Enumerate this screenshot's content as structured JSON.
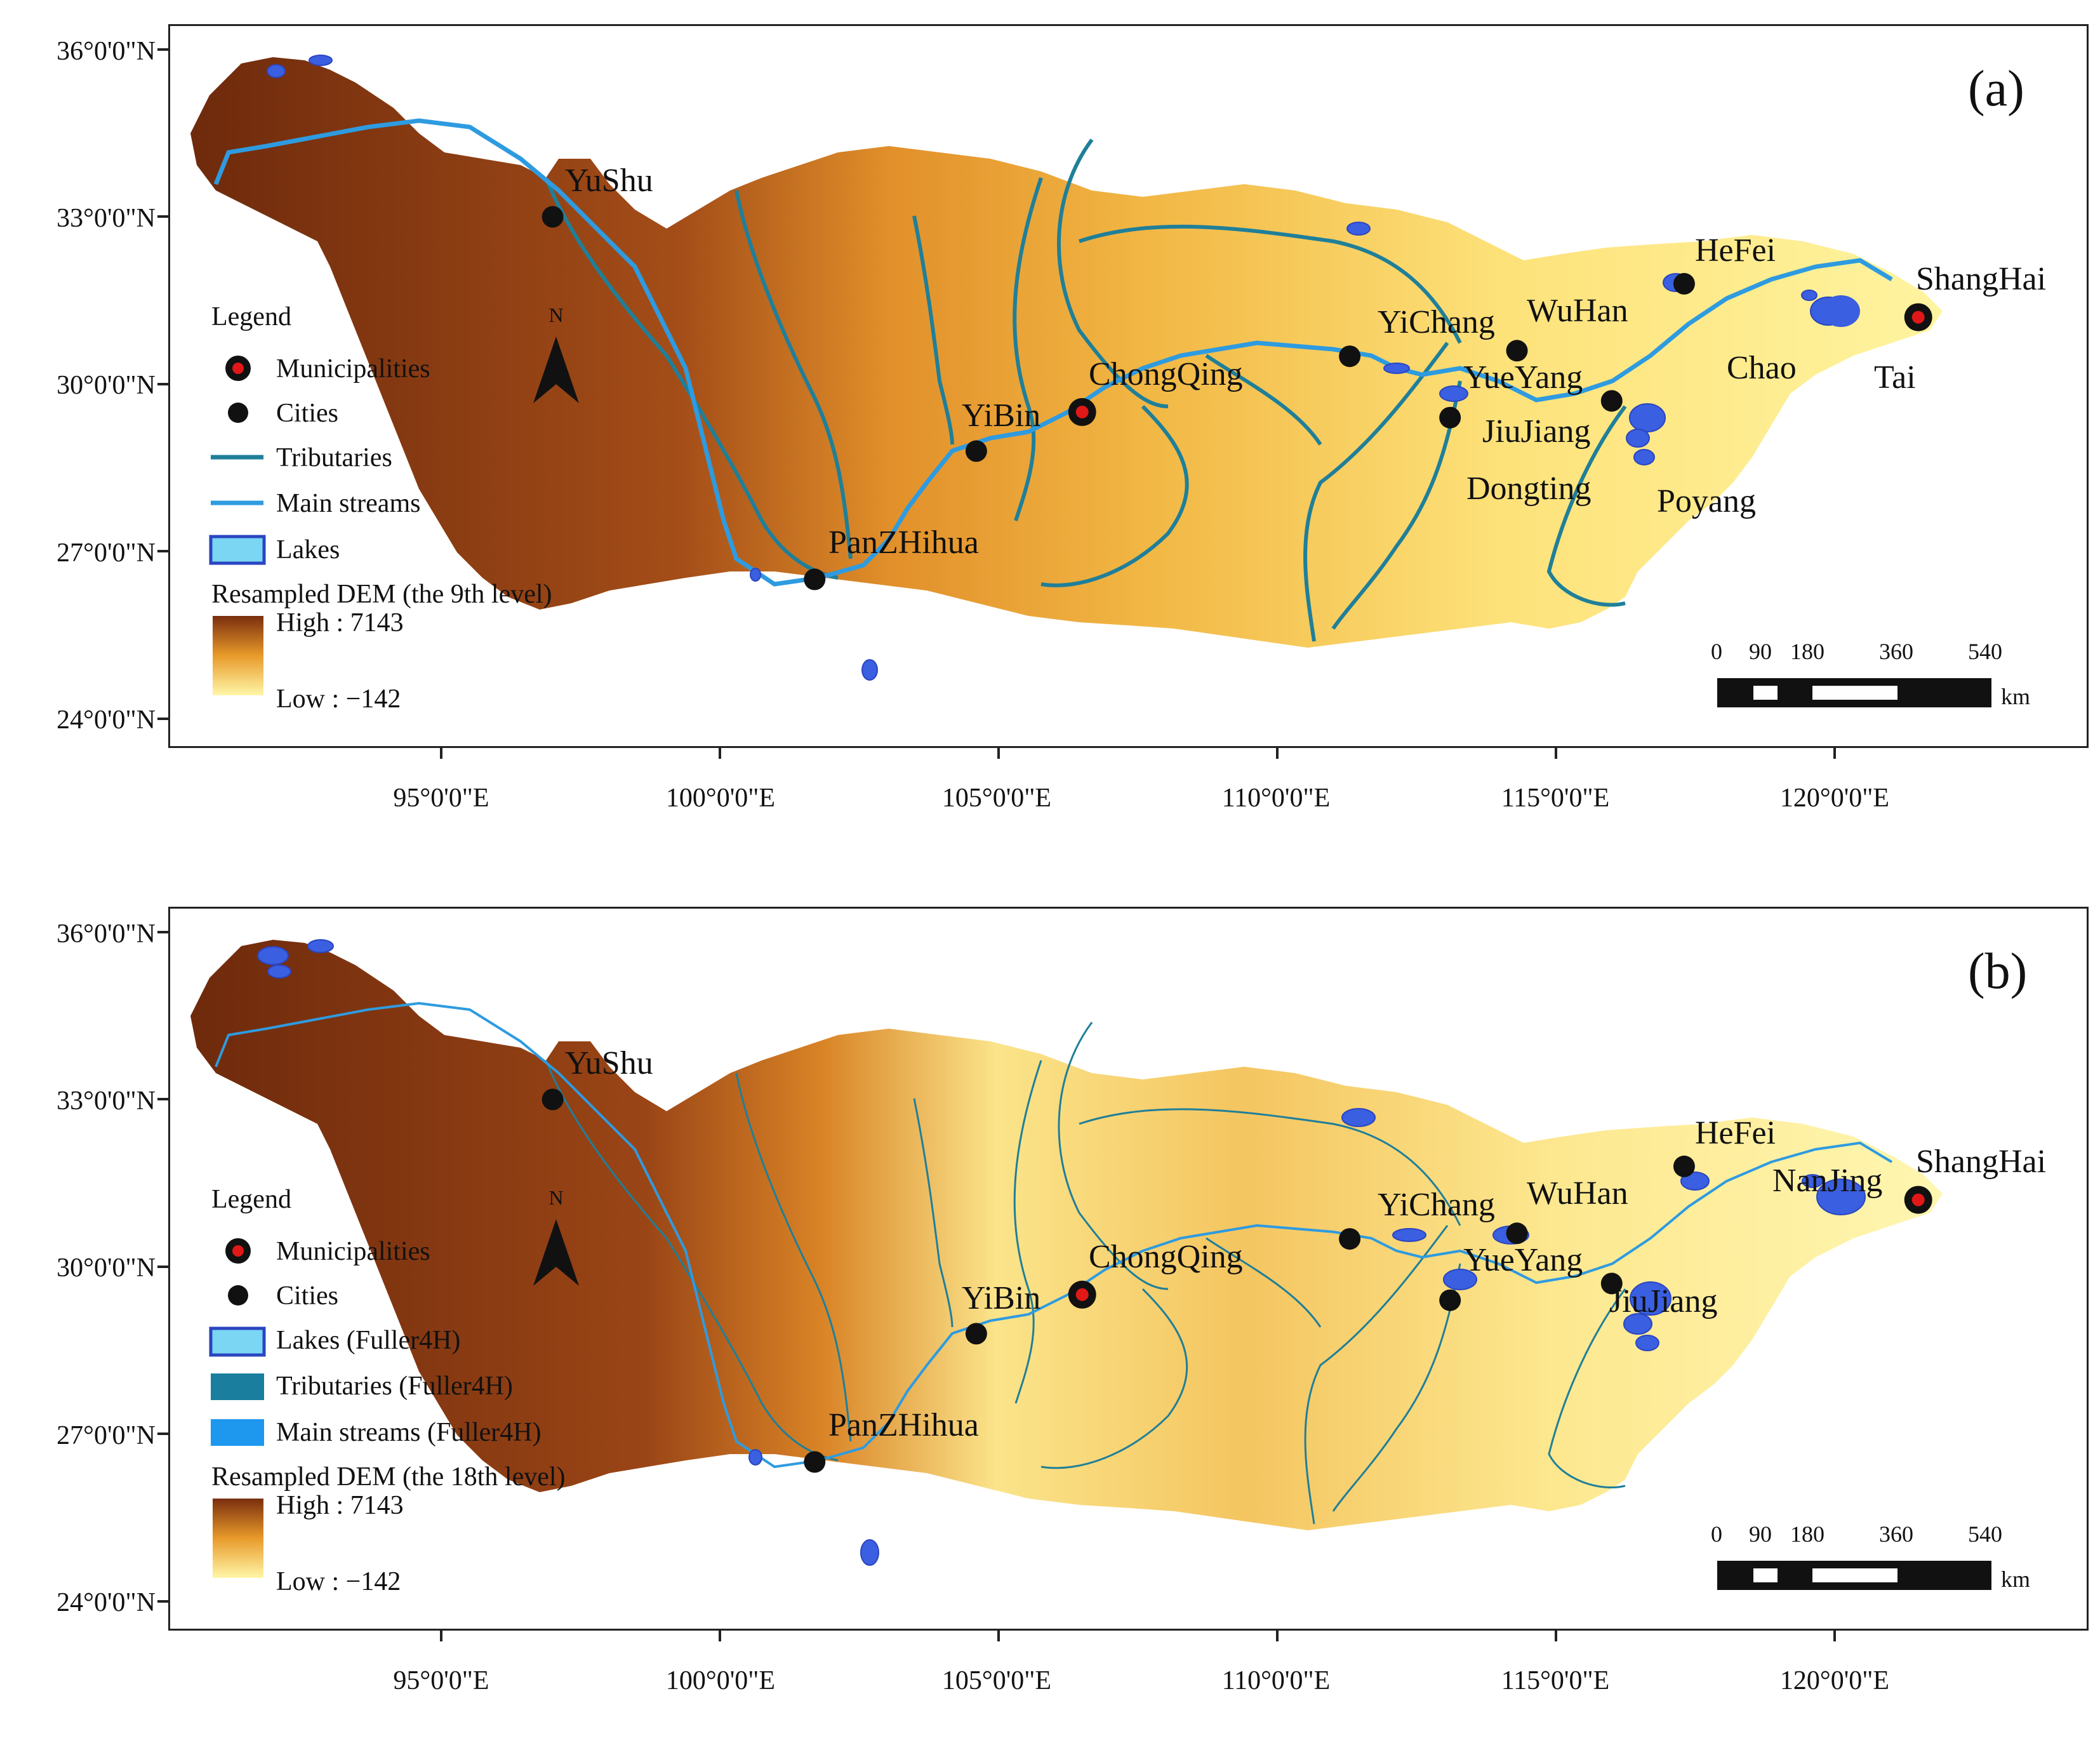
{
  "panels": [
    {
      "id": "a",
      "label": "(a)",
      "legend_title": "Legend",
      "legend_items": [
        "Municipalities",
        "Cities",
        "Tributaries",
        "Main streams",
        "Lakes"
      ],
      "dem_title": "Resampled DEM (the 9th level)",
      "dem_high": "High : 7143",
      "dem_low": "Low : −142",
      "lake_labels": [
        "Chao",
        "Tai",
        "Dongting",
        "Poyang"
      ]
    },
    {
      "id": "b",
      "label": "(b)",
      "legend_title": "Legend",
      "legend_items": [
        "Municipalities",
        "Cities",
        "Lakes (Fuller4H)",
        "Tributaries (Fuller4H)",
        "Main streams (Fuller4H)"
      ],
      "dem_title": "Resampled DEM (the 18th level)",
      "dem_high": "High : 7143",
      "dem_low": "Low : −142",
      "extra_city": "NanJing"
    }
  ],
  "axes": {
    "y_labels": [
      "36°0'0\"N",
      "33°0'0\"N",
      "30°0'0\"N",
      "27°0'0\"N",
      "24°0'0\"N"
    ],
    "x_labels": [
      "95°0'0\"E",
      "100°0'0\"E",
      "105°0'0\"E",
      "110°0'0\"E",
      "115°0'0\"E",
      "120°0'0\"E"
    ]
  },
  "north_label": "N",
  "scale_bar": {
    "ticks": [
      "0",
      "90",
      "180",
      "360",
      "540"
    ],
    "unit": "km"
  },
  "cities": [
    {
      "name": "YuShu",
      "type": "city",
      "lon": 97.0,
      "lat": 33.0
    },
    {
      "name": "PanZHihua",
      "type": "city",
      "lon": 101.7,
      "lat": 26.5
    },
    {
      "name": "YiBin",
      "type": "city",
      "lon": 104.6,
      "lat": 28.8
    },
    {
      "name": "ChongQing",
      "type": "municipality",
      "lon": 106.5,
      "lat": 29.5
    },
    {
      "name": "YiChang",
      "type": "city",
      "lon": 111.3,
      "lat": 30.5
    },
    {
      "name": "WuHan",
      "type": "city",
      "lon": 114.3,
      "lat": 30.6
    },
    {
      "name": "YueYang",
      "type": "city",
      "lon": 113.1,
      "lat": 29.4
    },
    {
      "name": "JiuJiang",
      "type": "city",
      "lon": 116.0,
      "lat": 29.7
    },
    {
      "name": "HeFei",
      "type": "city",
      "lon": 117.3,
      "lat": 31.8
    },
    {
      "name": "ShangHai",
      "type": "municipality",
      "lon": 121.5,
      "lat": 31.2
    }
  ],
  "colors": {
    "dem_high": "#7a2e0e",
    "dem_mid": "#e89a2a",
    "dem_low": "#fff6a8",
    "tributary": "#1f7f99",
    "main_stream": "#2e9be0",
    "lake": "#3a5fe0",
    "municipality": "#e01818"
  }
}
